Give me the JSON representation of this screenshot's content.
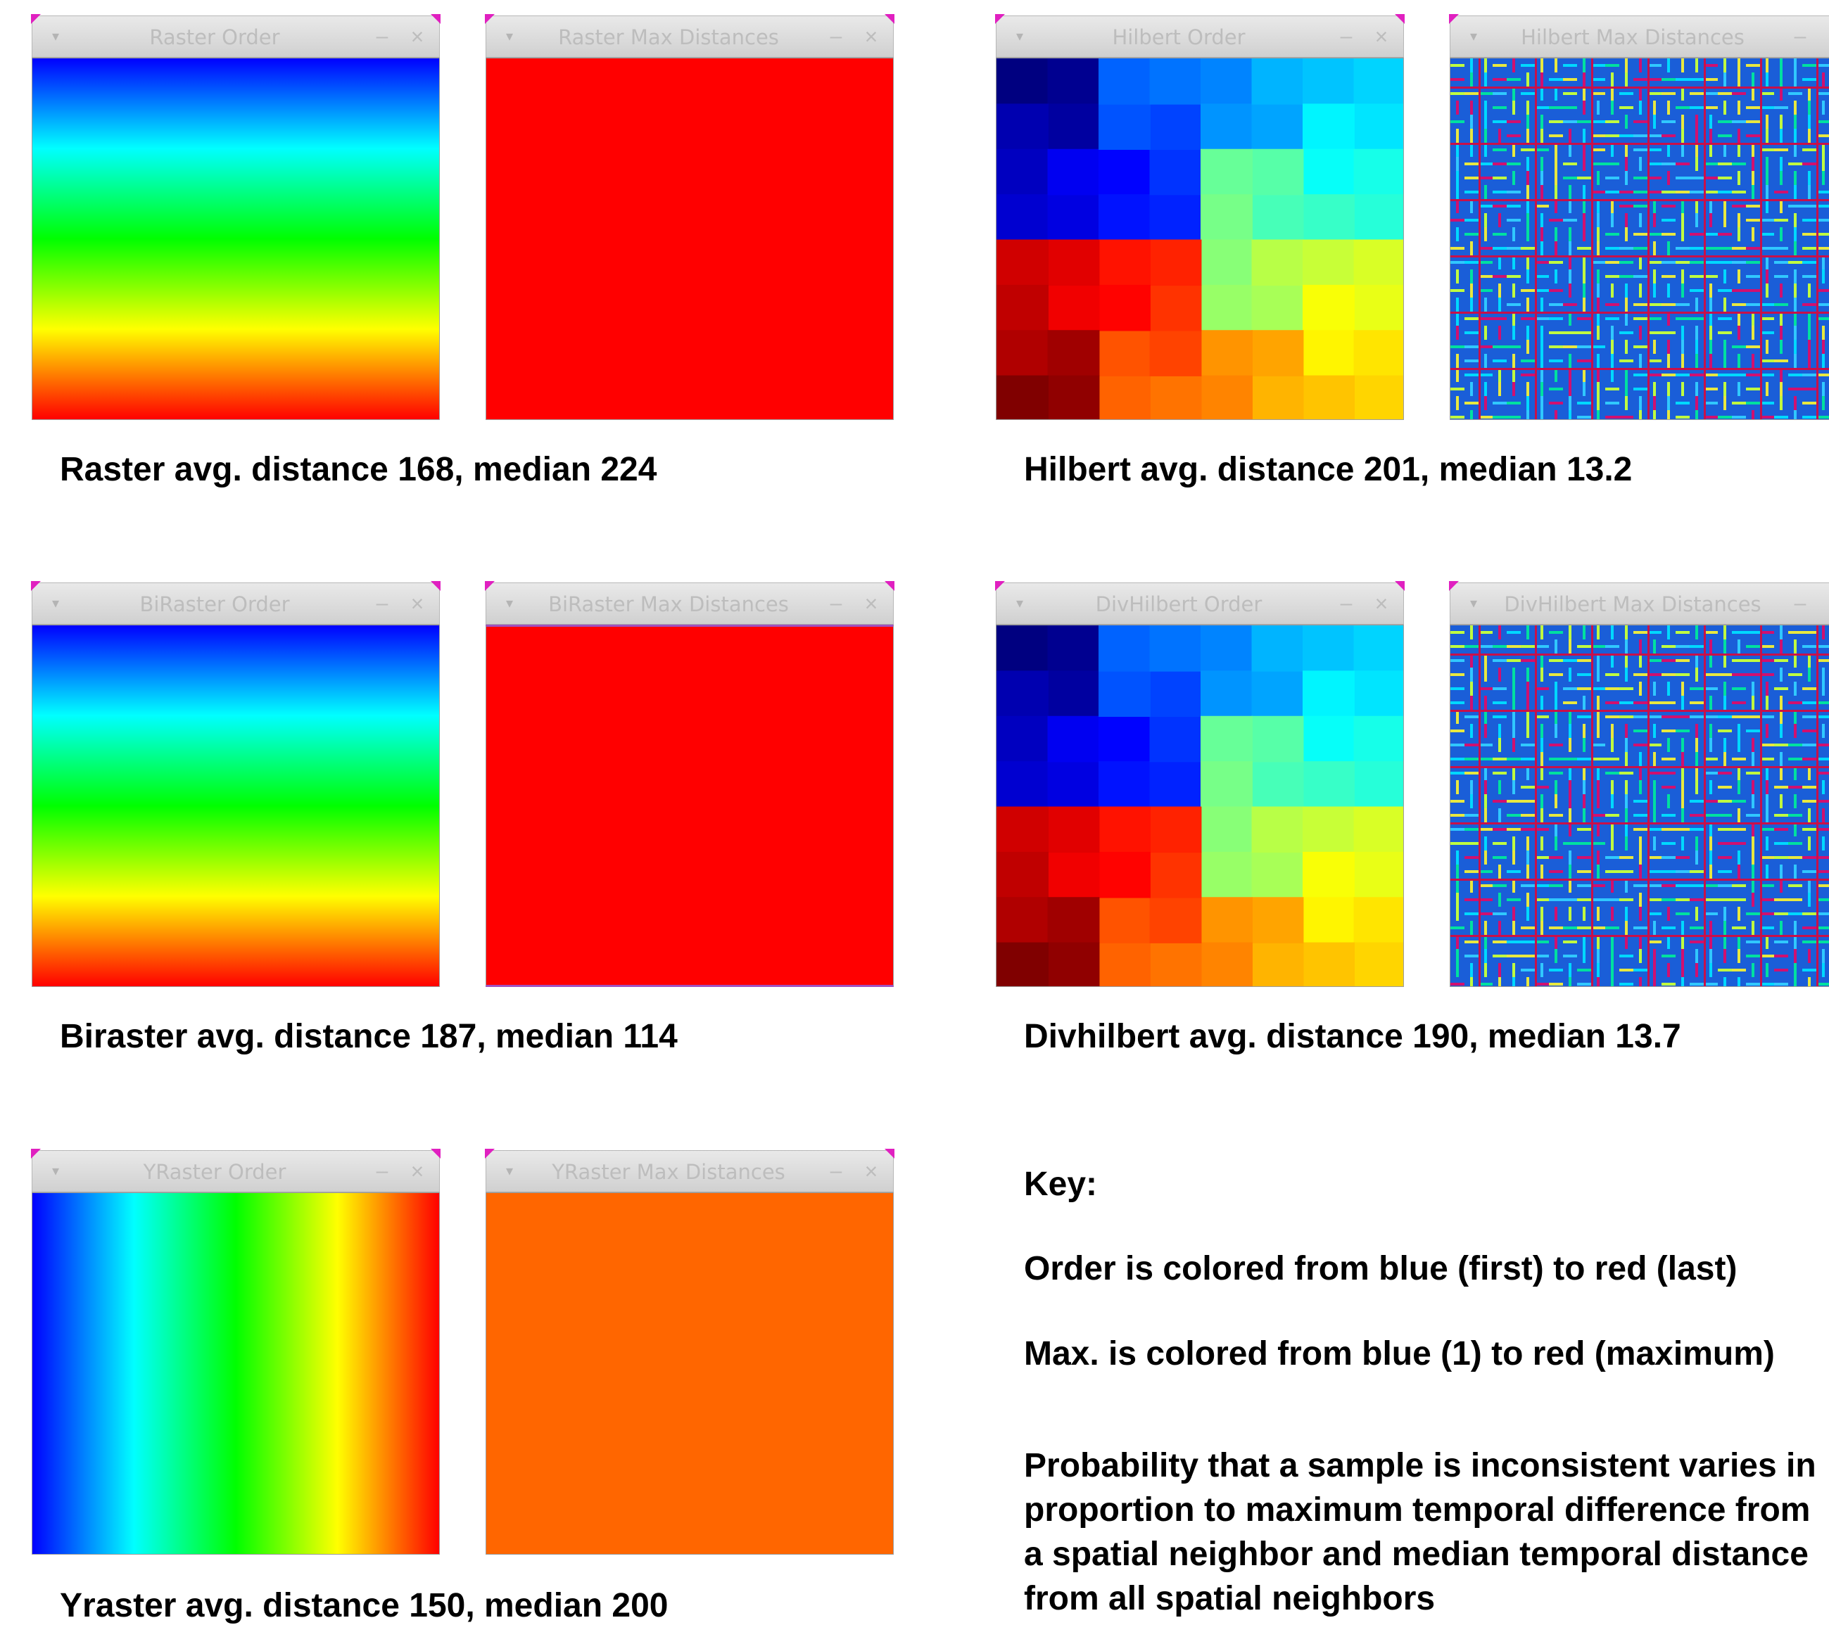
{
  "windows": {
    "raster_order": "Raster Order",
    "raster_max": "Raster Max Distances",
    "hilbert_order": "Hilbert Order",
    "hilbert_max": "Hilbert Max Distances",
    "biraster_order": "BiRaster Order",
    "biraster_max": "BiRaster Max Distances",
    "divhilbert_order": "DivHilbert Order",
    "divhilbert_max": "DivHilbert Max Distances",
    "yraster_order": "YRaster Order",
    "yraster_max": "YRaster Max Distances"
  },
  "captions": {
    "raster": "Raster avg. distance 168, median 224",
    "hilbert": "Hilbert avg. distance 201, median 13.2",
    "biraster": "Biraster avg. distance 187, median 114",
    "divhilbert": "Divhilbert avg. distance 190, median 13.7",
    "yraster": "Yraster avg. distance 150, median 200"
  },
  "key": {
    "heading": "Key:",
    "order_line": "Order is colored from blue (first) to red (last)",
    "max_line": "Max. is colored from blue (1) to red (maximum)",
    "probability_text": "Probability that a sample is inconsistent varies in proportion to maximum temporal difference from a spatial neighbor and median temporal distance from all spatial neighbors"
  },
  "icons": {
    "menu": "chevron-down-icon",
    "minimize": "minimize-icon",
    "close": "close-icon"
  },
  "colors": {
    "blue": "#0000ff",
    "cyan": "#00ffff",
    "green": "#00ff00",
    "yellow": "#ffff00",
    "red": "#ff0000",
    "orange": "#ff6600"
  }
}
